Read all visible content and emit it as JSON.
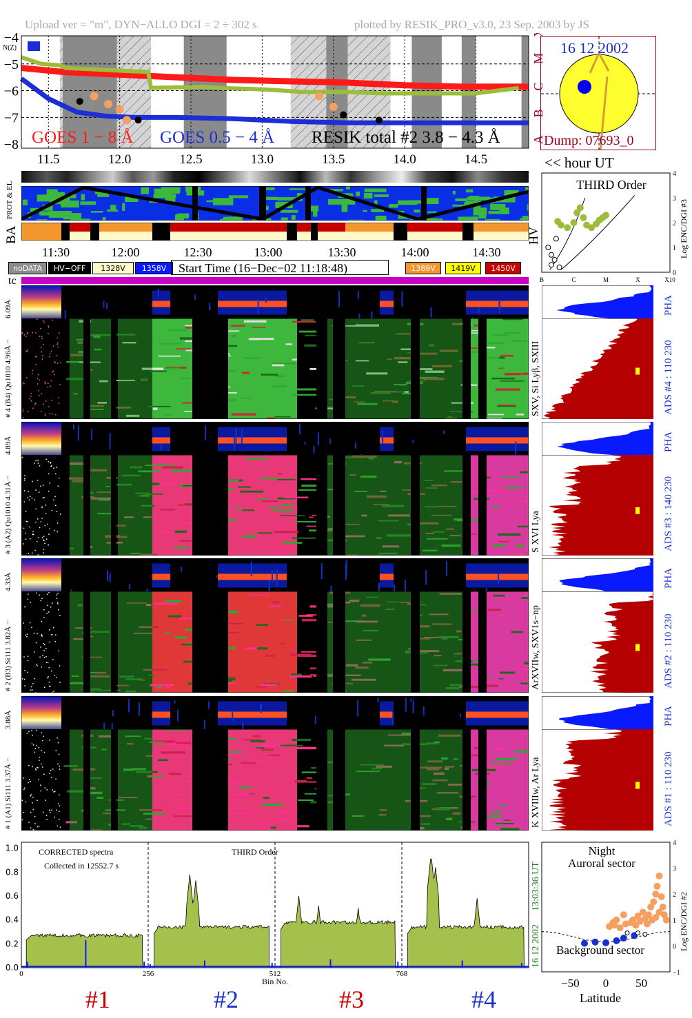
{
  "header": {
    "left": "Upload ver = \"m\", DYN−ALLO DGI =   2 ÷ 302 s",
    "right": "plotted by RESIK_PRO_v3.0, 23 Sep. 2003 by JS"
  },
  "colors": {
    "goes_long": "#ff1a1a",
    "goes_short": "#1c2fd6",
    "resik": "#9cbd3c",
    "resik_hi": "#f4a060",
    "night_gray": "#8a8a8a",
    "orange": "#f4962e",
    "red": "#c80000",
    "pha_blue": "#0a1aff",
    "ads_red": "#b40000",
    "magenta": "#c800c8",
    "spec_fill": "#a6c04e"
  },
  "goes_panel": {
    "chart_data": {
      "type": "line",
      "x_axis": {
        "ticks": [
          "11.5",
          "12.0",
          "12.5",
          "13.0",
          "13.5",
          "14.0",
          "14.5"
        ],
        "label": "<< hour UT",
        "range": [
          11.31,
          14.87
        ]
      },
      "y_axis": {
        "ticks": [
          "−4",
          "−5",
          "−6",
          "−7",
          "−8"
        ],
        "range": [
          -8.15,
          -3.95
        ]
      },
      "right_axis_classes": [
        "X",
        "M",
        "C",
        "B",
        "A"
      ],
      "series": [
        {
          "name": "GOES 1 − 8 Å",
          "x": [
            11.31,
            11.6,
            12.0,
            12.4,
            12.8,
            13.2,
            13.6,
            14.0,
            14.4,
            14.87
          ],
          "y": [
            -5.15,
            -5.3,
            -5.4,
            -5.5,
            -5.6,
            -5.65,
            -5.7,
            -5.8,
            -5.85,
            -5.85
          ]
        },
        {
          "name": "GOES 0.5 − 4 Å",
          "x": [
            11.31,
            11.5,
            11.7,
            11.9,
            12.1,
            12.4,
            12.8,
            13.2,
            13.6,
            14.0,
            14.4,
            14.87
          ],
          "y": [
            -5.55,
            -6.3,
            -6.8,
            -6.95,
            -7.0,
            -7.0,
            -7.05,
            -7.15,
            -7.2,
            -7.2,
            -7.2,
            -7.2
          ]
        },
        {
          "name": "RESIK total #2  3.8 − 4.3 Å",
          "x": [
            11.31,
            11.45,
            11.58,
            11.62,
            12.0,
            12.2,
            12.22,
            12.6,
            12.7,
            13.0,
            13.3,
            13.6,
            13.85,
            14.1,
            14.5,
            14.8
          ],
          "y": [
            -4.75,
            -5.0,
            -5.05,
            -5.15,
            -5.25,
            -5.3,
            -5.9,
            -5.85,
            -5.9,
            -5.95,
            -6.05,
            -6.05,
            -6.1,
            -6.1,
            -6.1,
            -5.9
          ]
        }
      ],
      "shaded_hatched_hours": [
        [
          11.58,
          12.22
        ],
        [
          13.2,
          13.9
        ]
      ],
      "night_hours": [
        [
          11.6,
          11.98
        ],
        [
          12.45,
          12.75
        ],
        [
          13.45,
          13.6
        ],
        [
          14.05,
          14.26
        ],
        [
          14.4,
          14.5
        ],
        [
          14.82,
          14.87
        ]
      ]
    },
    "legend_goes_long": "GOES 1 − 8 Å",
    "legend_goes_short": "GOES 0.5 − 4 Å",
    "legend_resik": "RESIK total #2  3.8 − 4.3 Å",
    "nzi_label": "N(Z)",
    "hour_label": "<< hour UT"
  },
  "sun_panel": {
    "date": "16 12 2002",
    "dump": "Dump: 07693_0"
  },
  "status_rows": {
    "label_prot": "PROT & EL",
    "label_ba": "BA"
  },
  "hv_panel": {
    "chart_data": {
      "type": "scatter",
      "title": "THIRD Order",
      "x_ticks": [
        "B",
        "C",
        "M",
        "X",
        "X10"
      ],
      "y_ticks": [
        "0",
        "1",
        "2",
        "3",
        "4"
      ],
      "ylabel": "Log ENC/DGI #3",
      "left_label": "HV",
      "range_x": [
        0,
        4
      ],
      "range_y": [
        0,
        4
      ]
    }
  },
  "time_axis": {
    "ticks": [
      "11:30",
      "12:00",
      "12:30",
      "13:00",
      "13:30",
      "14:00",
      "14:30"
    ],
    "start_time": "Start Time (16−Dec−02 11:18:48)",
    "legend_left": [
      {
        "label": "noDATA",
        "bg": "#8c8c8c",
        "fg": "#fff"
      },
      {
        "label": "HV−OFF",
        "bg": "#000",
        "fg": "#fff"
      },
      {
        "label": "1328V",
        "bg": "#fff8c8",
        "fg": "#000"
      },
      {
        "label": "1358V",
        "bg": "#0a1aff",
        "fg": "#fff"
      }
    ],
    "legend_right": [
      {
        "label": "1389V",
        "bg": "#f4962e",
        "fg": "#fff"
      },
      {
        "label": "1419V",
        "bg": "#ffff00",
        "fg": "#000"
      },
      {
        "label": "1450V",
        "bg": "#c80000",
        "fg": "#fff"
      }
    ],
    "tc_label": "tc"
  },
  "channels": [
    {
      "pha_label": "6.09Å",
      "label": "# 4 (B4) Qu1010 4.96Å −",
      "side": "SXV, Si Lyβ, SXIII",
      "ads": "ADS #4 :  110 230",
      "pha": "PHA"
    },
    {
      "pha_label": "4.89Å",
      "label": "# 3 (A2) Qu1010 4.31Å −",
      "side": "S XVI Lya",
      "ads": "ADS #3 :  140 230",
      "pha": "PHA"
    },
    {
      "pha_label": "4.33Å",
      "label": "# 2 (B3) Si111 3.82Å −",
      "side": "ArXVIIw, SXV1s−np",
      "ads": "ADS #2 :  110 230",
      "pha": "PHA"
    },
    {
      "pha_label": "3.88Å",
      "label": "# 1 (A1) Si111 3.37Å −",
      "side": "K XVIIIw, Ar Lya",
      "ads": "ADS #1 :  110 230",
      "pha": "PHA"
    }
  ],
  "spectrum_panel": {
    "chart_data": {
      "type": "area",
      "title": "CORRECTED spectra",
      "subtitle": "Collected in 12552.7 s",
      "third_order": "THIRD Order",
      "xlabel": "Bin No.",
      "x_ticks": [
        "0",
        "256",
        "512",
        "768"
      ],
      "y_ticks": [
        "0.0",
        "0.2",
        "0.4",
        "0.6",
        "0.8",
        "1.0"
      ],
      "xlim": [
        0,
        1024
      ],
      "ylim": [
        0,
        1.05
      ],
      "segments": [
        {
          "name": "#1",
          "bins": [
            10,
            245
          ],
          "level": 0.27
        },
        {
          "name": "#2",
          "bins": [
            268,
            500
          ],
          "level": 0.34
        },
        {
          "name": "#3",
          "bins": [
            524,
            755
          ],
          "level": 0.38
        },
        {
          "name": "#4",
          "bins": [
            780,
            1015
          ],
          "level": 0.34
        }
      ],
      "peaks": [
        {
          "bin": 340,
          "y": 0.73
        },
        {
          "bin": 352,
          "y": 0.68
        },
        {
          "bin": 600,
          "y": 0.52
        },
        {
          "bin": 680,
          "y": 0.5
        },
        {
          "bin": 827,
          "y": 0.95
        },
        {
          "bin": 836,
          "y": 0.84
        },
        {
          "bin": 560,
          "y": 0.6
        },
        {
          "bin": 920,
          "y": 0.58
        }
      ],
      "segment_labels": [
        "#1",
        "#2",
        "#3",
        "#4"
      ],
      "side_date": "16 12 2002",
      "side_time": "13:03:36 UT"
    }
  },
  "latitude_panel": {
    "chart_data": {
      "type": "scatter",
      "title": "Night",
      "top_label": "Auroral sector",
      "bottom_label": "Background sector",
      "xlabel": "Latitude",
      "ylabel": "Log ENC/DGI #2",
      "x_ticks": [
        "−50",
        "0",
        "50"
      ],
      "y_ticks": [
        "−1",
        "0",
        "1",
        "2",
        "3",
        "4"
      ],
      "xlim": [
        -90,
        90
      ],
      "ylim": [
        -1,
        4
      ],
      "orange_points": [
        [
          5,
          0.75
        ],
        [
          12,
          0.8
        ],
        [
          20,
          0.7
        ],
        [
          28,
          0.85
        ],
        [
          35,
          0.9
        ],
        [
          42,
          0.8
        ],
        [
          48,
          0.95
        ],
        [
          55,
          1.05
        ],
        [
          60,
          1.2
        ],
        [
          63,
          1.5
        ],
        [
          67,
          1.7
        ],
        [
          70,
          2.0
        ],
        [
          72,
          2.3
        ],
        [
          75,
          2.7
        ],
        [
          78,
          1.9
        ],
        [
          80,
          1.5
        ],
        [
          65,
          1.0
        ],
        [
          58,
          0.85
        ],
        [
          15,
          1.0
        ],
        [
          25,
          1.2
        ],
        [
          10,
          0.9
        ],
        [
          38,
          1.0
        ],
        [
          45,
          1.15
        ],
        [
          52,
          1.3
        ],
        [
          70,
          1.1
        ],
        [
          75,
          1.3
        ],
        [
          82,
          1.2
        ],
        [
          85,
          1.0
        ]
      ],
      "blue_points": [
        [
          -30,
          0.1
        ],
        [
          -15,
          0.15
        ],
        [
          0,
          0.12
        ],
        [
          15,
          0.2
        ],
        [
          25,
          0.3
        ],
        [
          40,
          0.4
        ]
      ]
    }
  }
}
